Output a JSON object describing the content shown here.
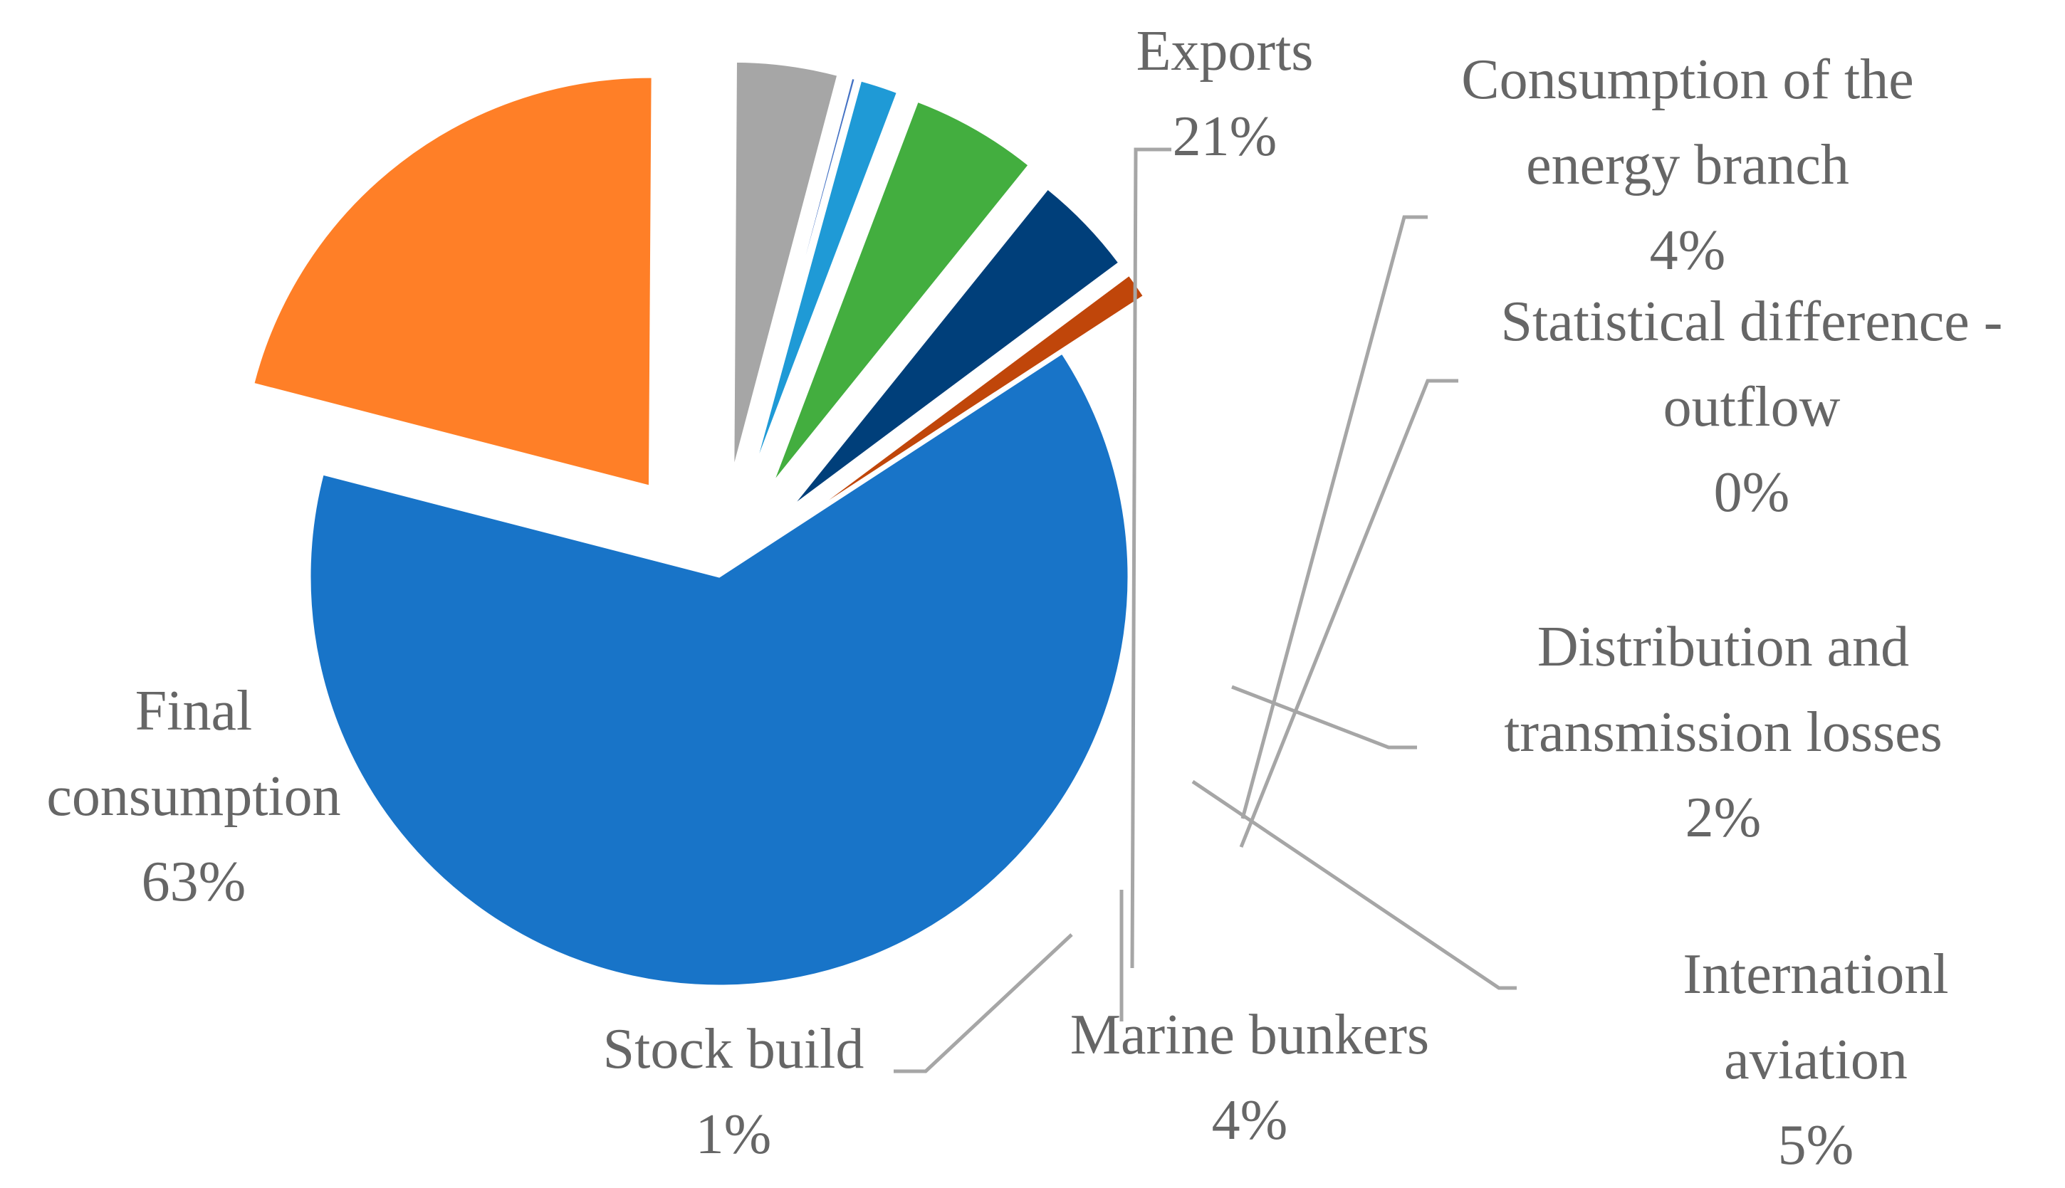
{
  "chart_data": {
    "type": "pie",
    "exploded": true,
    "legend": "none",
    "slices": [
      {
        "label_lines": [
          "Exports"
        ],
        "name": "Exports",
        "value": 21,
        "value_label": "21%",
        "color": "#ff7f27"
      },
      {
        "label_lines": [
          "Consumption of the",
          "energy branch"
        ],
        "name": "Consumption of the energy branch",
        "value": 4,
        "value_label": "4%",
        "color": "#a6a6a6"
      },
      {
        "label_lines": [
          "Statistical difference -",
          "outflow"
        ],
        "name": "Statistical difference - outflow",
        "value": 0.15,
        "value_label": "0%",
        "color": "#4472c4"
      },
      {
        "label_lines": [
          "Distribution and",
          "transmission losses"
        ],
        "name": "Distribution and transmission losses",
        "value": 1.5,
        "value_label": "2%",
        "color": "#1f9ad6"
      },
      {
        "label_lines": [
          "Internationl",
          "aviation"
        ],
        "name": "Internationl aviation",
        "value": 5,
        "value_label": "5%",
        "color": "#43ae3f"
      },
      {
        "label_lines": [
          "Marine bunkers"
        ],
        "name": "Marine bunkers",
        "value": 4,
        "value_label": "4%",
        "color": "#003f7a"
      },
      {
        "label_lines": [
          "Stock build"
        ],
        "name": "Stock build",
        "value": 1,
        "value_label": "1%",
        "color": "#c0460a"
      },
      {
        "label_lines": [
          "Final",
          "consumption"
        ],
        "name": "Final consumption",
        "value": 63,
        "value_label": "63%",
        "color": "#1874c8"
      }
    ]
  }
}
